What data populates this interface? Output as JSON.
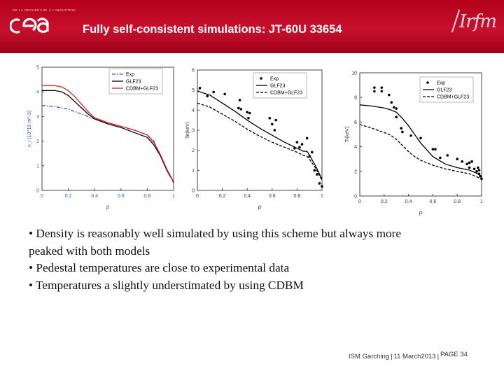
{
  "header": {
    "tagline": "DE LA RECHERCHE À L'INDUSTRIE",
    "logo_text": "cea",
    "title": "Fully self-consistent simulations: JT-60U 33654",
    "right_logo_text": "Irfm"
  },
  "bullets": [
    "• Density is reasonably well simulated by using this scheme but always more",
    "peaked with both models",
    "• Pedestal temperatures are close to experimental data",
    "• Temperatures a slightly understimated by using CDBM"
  ],
  "footer": {
    "event": "ISM Garching",
    "date": "11 March2013",
    "page": "PAGE 34"
  },
  "chart_data": [
    {
      "type": "line",
      "xlabel": "ρ",
      "ylabel": "n_i (10^19 m^-3)",
      "xlim": [
        0,
        1
      ],
      "ylim": [
        0,
        5
      ],
      "xticks": [
        0,
        0.2,
        0.4,
        0.6,
        0.8,
        1
      ],
      "yticks": [
        0,
        1,
        2,
        3,
        4,
        5
      ],
      "tick_color": "#3355cc",
      "legend_position": "top-right",
      "series": [
        {
          "name": "Exp",
          "color": "#2d4fd6",
          "style": "dash-dot",
          "x": [
            0,
            0.1,
            0.2,
            0.3,
            0.4,
            0.5,
            0.6,
            0.7,
            0.8,
            0.85,
            0.9,
            0.95,
            1.0
          ],
          "y": [
            3.45,
            3.4,
            3.3,
            3.1,
            2.9,
            2.75,
            2.6,
            2.45,
            2.25,
            2.0,
            1.4,
            0.8,
            0.3
          ]
        },
        {
          "name": "GLF23",
          "color": "#000000",
          "style": "solid",
          "x": [
            0,
            0.1,
            0.15,
            0.2,
            0.25,
            0.3,
            0.35,
            0.4,
            0.5,
            0.6,
            0.7,
            0.8,
            0.85,
            0.9,
            0.95,
            1.0
          ],
          "y": [
            4.05,
            4.05,
            4.0,
            3.85,
            3.6,
            3.35,
            3.1,
            2.9,
            2.7,
            2.55,
            2.35,
            2.15,
            1.85,
            1.4,
            0.8,
            0.35
          ]
        },
        {
          "name": "CDBM+GLF23",
          "color": "#e02020",
          "style": "solid",
          "x": [
            0,
            0.1,
            0.15,
            0.2,
            0.25,
            0.3,
            0.35,
            0.4,
            0.5,
            0.6,
            0.7,
            0.8,
            0.85,
            0.9,
            0.95,
            1.0
          ],
          "y": [
            4.25,
            4.25,
            4.2,
            4.05,
            3.8,
            3.5,
            3.2,
            2.95,
            2.75,
            2.6,
            2.45,
            2.25,
            1.95,
            1.45,
            0.85,
            0.35
          ]
        }
      ]
    },
    {
      "type": "line",
      "xlabel": "ρ",
      "ylabel": "Te(keV)",
      "xlim": [
        0,
        1
      ],
      "ylim": [
        0,
        6
      ],
      "xticks": [
        0,
        0.2,
        0.4,
        0.6,
        0.8,
        1
      ],
      "yticks": [
        0,
        1,
        2,
        3,
        4,
        5,
        6
      ],
      "tick_color": "#333333",
      "legend_position": "top-right",
      "series": [
        {
          "name": "Exp",
          "color": "#000000",
          "style": "points",
          "x": [
            0.02,
            0.08,
            0.13,
            0.22,
            0.33,
            0.34,
            0.35,
            0.4,
            0.41,
            0.42,
            0.48,
            0.5,
            0.51,
            0.58,
            0.6,
            0.62,
            0.63,
            0.78,
            0.8,
            0.82,
            0.84,
            0.88,
            0.9,
            0.92,
            0.94,
            0.96,
            0.98,
            1.0
          ],
          "y": [
            5.1,
            4.7,
            4.9,
            4.8,
            4.1,
            4.5,
            4.05,
            3.9,
            3.6,
            3.85,
            4.8,
            5.1,
            4.7,
            3.6,
            3.3,
            3.0,
            3.5,
            2.1,
            2.4,
            2.15,
            2.3,
            2.6,
            1.7,
            1.9,
            1.0,
            0.8,
            0.35,
            0.2
          ]
        },
        {
          "name": "GLF23",
          "color": "#000000",
          "style": "solid",
          "x": [
            0,
            0.1,
            0.2,
            0.3,
            0.4,
            0.5,
            0.6,
            0.7,
            0.8,
            0.85,
            0.88,
            0.9,
            0.95,
            1.0
          ],
          "y": [
            4.95,
            4.75,
            4.35,
            3.95,
            3.5,
            3.1,
            2.75,
            2.4,
            2.1,
            1.95,
            1.95,
            1.75,
            1.2,
            0.55
          ]
        },
        {
          "name": "CDBM+GLF23",
          "color": "#000000",
          "style": "dashed",
          "x": [
            0,
            0.1,
            0.2,
            0.3,
            0.4,
            0.5,
            0.6,
            0.7,
            0.8,
            0.85,
            0.88,
            0.9,
            0.95,
            1.0
          ],
          "y": [
            4.35,
            4.15,
            3.8,
            3.45,
            3.05,
            2.7,
            2.4,
            2.15,
            1.9,
            1.75,
            1.7,
            1.55,
            1.1,
            0.5
          ]
        }
      ]
    },
    {
      "type": "line",
      "xlabel": "ρ",
      "ylabel": "Ti(keV)",
      "xlim": [
        0,
        1
      ],
      "ylim": [
        0,
        10
      ],
      "xticks": [
        0,
        0.2,
        0.4,
        0.6,
        0.8,
        1
      ],
      "yticks": [
        0,
        2,
        4,
        6,
        8,
        10
      ],
      "tick_color": "#333333",
      "legend_position": "top-right",
      "series": [
        {
          "name": "Exp",
          "color": "#000000",
          "style": "points",
          "x": [
            0.12,
            0.12,
            0.18,
            0.18,
            0.24,
            0.26,
            0.28,
            0.3,
            0.3,
            0.34,
            0.35,
            0.42,
            0.5,
            0.6,
            0.62,
            0.66,
            0.72,
            0.8,
            0.84,
            0.88,
            0.9,
            0.9,
            0.92,
            0.94,
            0.96,
            0.97,
            0.98,
            0.98,
            0.99,
            1.0
          ],
          "y": [
            8.8,
            8.5,
            8.5,
            8.8,
            8.2,
            7.6,
            7.2,
            6.4,
            7.1,
            5.5,
            5.2,
            4.9,
            4.7,
            3.8,
            3.8,
            3.1,
            3.3,
            3.0,
            2.8,
            2.6,
            2.3,
            2.7,
            2.8,
            2.2,
            2.0,
            2.3,
            2.1,
            1.8,
            1.6,
            1.4
          ]
        },
        {
          "name": "GLF23",
          "color": "#000000",
          "style": "solid",
          "x": [
            0,
            0.1,
            0.2,
            0.25,
            0.3,
            0.35,
            0.4,
            0.45,
            0.5,
            0.6,
            0.7,
            0.8,
            0.9,
            0.95,
            1.0
          ],
          "y": [
            7.4,
            7.3,
            7.15,
            7.0,
            6.8,
            6.3,
            5.7,
            5.0,
            4.3,
            3.2,
            2.6,
            2.3,
            2.1,
            1.9,
            1.6
          ]
        },
        {
          "name": "CDBM+GLF23",
          "color": "#000000",
          "style": "dashed",
          "x": [
            0,
            0.1,
            0.2,
            0.25,
            0.3,
            0.35,
            0.4,
            0.45,
            0.5,
            0.6,
            0.7,
            0.8,
            0.9,
            0.95,
            1.0
          ],
          "y": [
            5.8,
            5.5,
            5.15,
            4.95,
            4.6,
            4.1,
            3.6,
            3.2,
            2.9,
            2.5,
            2.2,
            2.0,
            1.8,
            1.6,
            1.4
          ]
        }
      ]
    }
  ]
}
